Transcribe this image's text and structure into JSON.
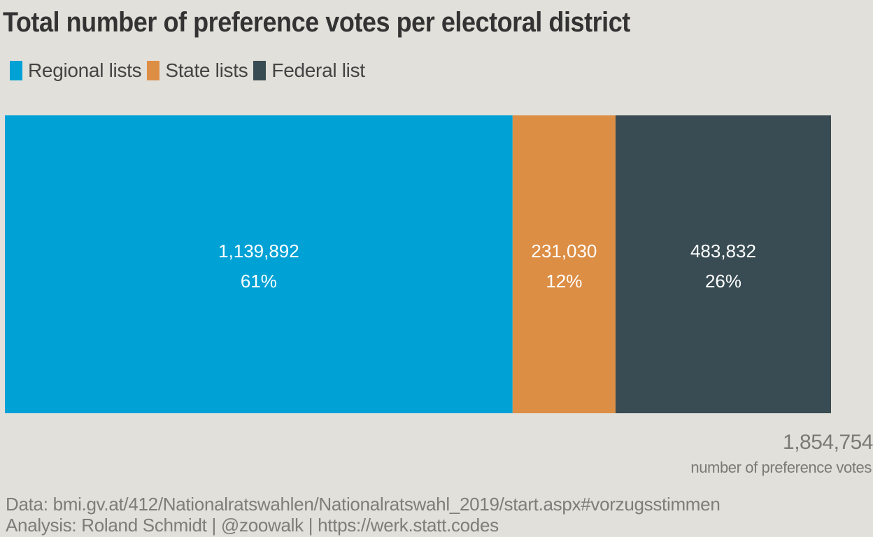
{
  "colors": {
    "background": "#e1e0da",
    "regional": "#00a2d6",
    "state": "#dd8e45",
    "federal": "#394c53"
  },
  "chart_data": {
    "type": "bar",
    "orientation": "horizontal-stacked-100",
    "title": "Total number of preference votes per electoral district",
    "legend_position": "top-left",
    "grid": false,
    "series": [
      {
        "name": "Regional lists",
        "value": 1139892,
        "value_label": "1,139,892",
        "percent_label": "61%",
        "color": "#00a2d6"
      },
      {
        "name": "State lists",
        "value": 231030,
        "value_label": "231,030",
        "percent_label": "12%",
        "color": "#dd8e45"
      },
      {
        "name": "Federal list",
        "value": 483832,
        "value_label": "483,832",
        "percent_label": "26%",
        "color": "#394c53"
      }
    ],
    "total": {
      "value_label": "1,854,754",
      "label": "number of preference votes"
    }
  },
  "caption": {
    "line1": "Data: bmi.gv.at/412/Nationalratswahlen/Nationalratswahl_2019/start.aspx#vorzugsstimmen",
    "line2": "Analysis: Roland Schmidt | @zoowalk | https://werk.statt.codes"
  }
}
